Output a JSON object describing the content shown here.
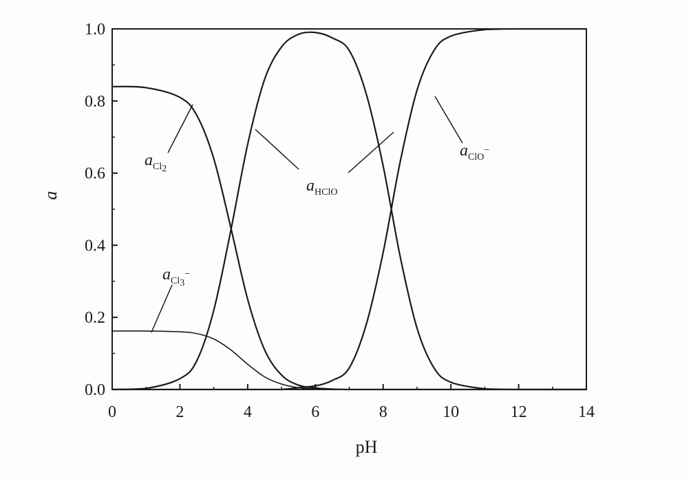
{
  "chart_data": {
    "type": "line",
    "title": "",
    "xlabel": "pH",
    "ylabel": "a",
    "xlim": [
      0,
      14
    ],
    "ylim": [
      0,
      1.0
    ],
    "x_ticks": [
      "0",
      "2",
      "4",
      "6",
      "8",
      "10",
      "12",
      "14"
    ],
    "y_ticks": [
      "0.0",
      "0.2",
      "0.4",
      "0.6",
      "0.8",
      "1.0"
    ],
    "grid": false,
    "legend": "none",
    "x": [
      0,
      1,
      2,
      2.5,
      3,
      3.5,
      4,
      4.5,
      5,
      5.5,
      6,
      6.5,
      7,
      7.5,
      8,
      8.5,
      9,
      9.5,
      10,
      11,
      12,
      13,
      14
    ],
    "series": [
      {
        "name": "a_Cl2",
        "label_main": "a",
        "label_sub": "Cl",
        "label_sub2": "2",
        "values": [
          0.84,
          0.837,
          0.81,
          0.76,
          0.64,
          0.45,
          0.25,
          0.11,
          0.04,
          0.012,
          0.004,
          0.001,
          0,
          0,
          0,
          0,
          0,
          0,
          0,
          0,
          0,
          0,
          0
        ]
      },
      {
        "name": "a_Cl3-",
        "label_main": "a",
        "label_sub": "Cl",
        "label_sub2": "3",
        "label_sup": "−",
        "values": [
          0.162,
          0.162,
          0.16,
          0.155,
          0.14,
          0.11,
          0.07,
          0.035,
          0.015,
          0.005,
          0.001,
          0,
          0,
          0,
          0,
          0,
          0,
          0,
          0,
          0,
          0,
          0,
          0
        ]
      },
      {
        "name": "a_HClO",
        "label_main": "a",
        "label_sub": "HClO",
        "values": [
          0,
          0.003,
          0.03,
          0.08,
          0.22,
          0.44,
          0.68,
          0.86,
          0.95,
          0.985,
          0.99,
          0.975,
          0.94,
          0.82,
          0.62,
          0.37,
          0.17,
          0.06,
          0.02,
          0.002,
          0,
          0,
          0
        ]
      },
      {
        "name": "a_ClO-",
        "label_main": "a",
        "label_sub": "ClO",
        "label_sup": "−",
        "values": [
          0,
          0,
          0,
          0,
          0,
          0,
          0,
          0,
          0,
          0.005,
          0.01,
          0.025,
          0.06,
          0.18,
          0.38,
          0.63,
          0.83,
          0.94,
          0.98,
          0.998,
          1.0,
          1.0,
          1.0
        ]
      }
    ]
  }
}
